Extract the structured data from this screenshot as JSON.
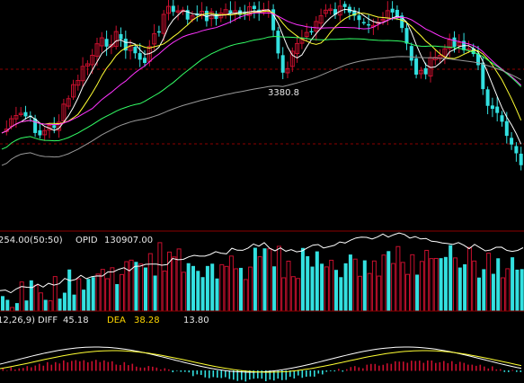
{
  "colors": {
    "background": "#000000",
    "up": "#c8102e",
    "down": "#33e0e0",
    "ma5": "#ffffff",
    "ma10": "#ffff33",
    "ma20": "#ff33ff",
    "ma30": "#33ff66",
    "ma60": "#999999",
    "separator": "#8b0000",
    "guide": "#8b0000",
    "label_white": "#e8e8e8",
    "label_yellow": "#ffd700"
  },
  "chart_data": [
    {
      "type": "candlestick",
      "title": "",
      "annotations": [
        {
          "text": "3380.8",
          "x": 315,
          "y": 3380.8
        }
      ],
      "guide_levels": [
        3380.8,
        3200,
        3000
      ],
      "ylim": [
        2850,
        3650
      ]
    },
    {
      "type": "bar",
      "header": {
        "left": "254.00(50:50)",
        "series_name": "OPID",
        "series_value": "130907.00"
      },
      "ylim": [
        0,
        150000
      ]
    },
    {
      "type": "bar",
      "header": {
        "params": "12,26,9)",
        "diff_label": "DIFF",
        "diff_value": "45.18",
        "dea_label": "DEA",
        "dea_value": "38.28",
        "macd_value": "13.80"
      },
      "ylim": [
        -20,
        80
      ]
    }
  ]
}
